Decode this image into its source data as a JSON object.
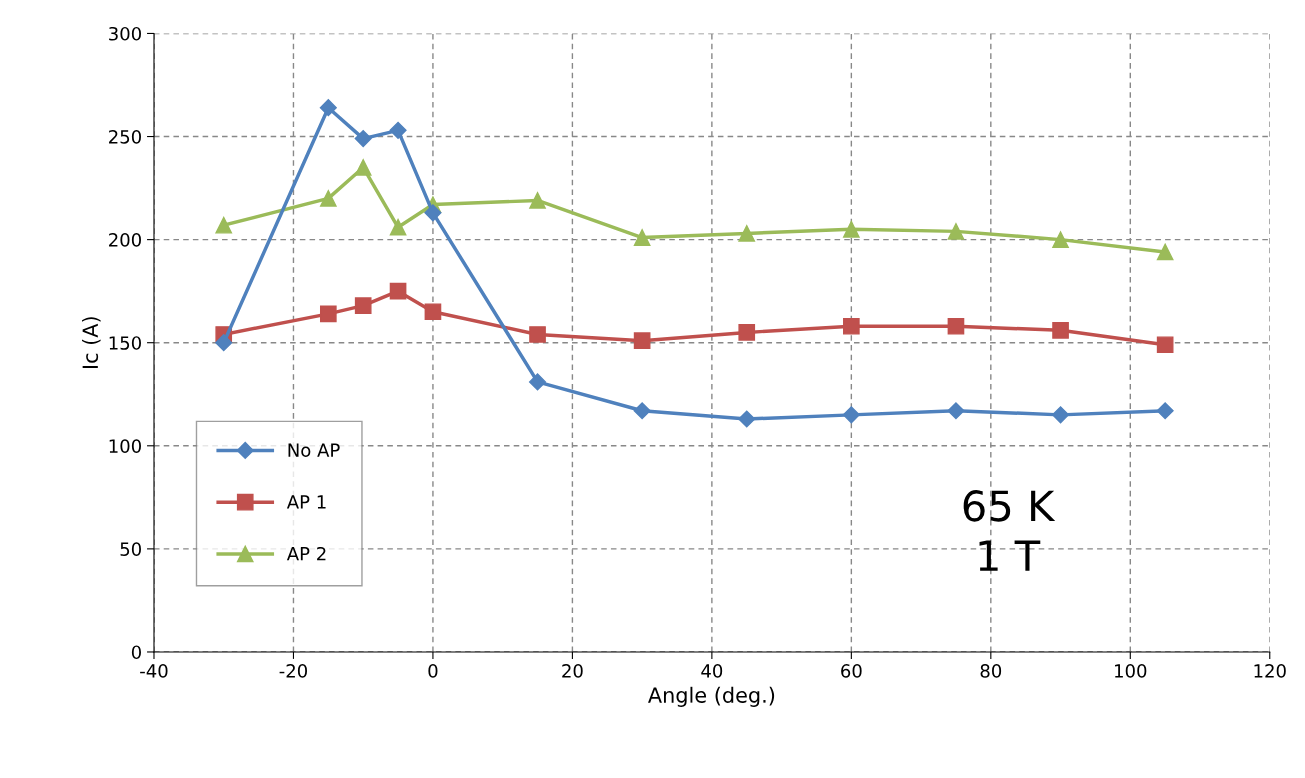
{
  "chart_data": {
    "type": "line",
    "xlabel": "Angle (deg.)",
    "ylabel": "Ic (A)",
    "xlim": [
      -40,
      120
    ],
    "xticks": [
      -40,
      -20,
      0,
      20,
      40,
      60,
      80,
      100,
      120
    ],
    "ylim": [
      0,
      300
    ],
    "yticks": [
      0,
      50,
      100,
      150,
      200,
      250,
      300
    ],
    "grid": true,
    "legend": "left",
    "annotations": [
      "65 K\n1 T"
    ],
    "x": [
      -30,
      -15,
      -10,
      -5,
      0,
      15,
      30,
      45,
      60,
      75,
      90,
      105
    ],
    "series": [
      {
        "name": "No AP",
        "color": "#4f81bd",
        "marker": "diamond",
        "values": [
          150,
          264,
          249,
          253,
          213,
          131,
          117,
          113,
          115,
          117,
          115,
          117
        ]
      },
      {
        "name": "AP 1",
        "color": "#c0504d",
        "marker": "square",
        "values": [
          154,
          164,
          168,
          175,
          165,
          154,
          151,
          155,
          158,
          158,
          156,
          149
        ]
      },
      {
        "name": "AP 2",
        "color": "#9bbb59",
        "marker": "triangle",
        "values": [
          207,
          220,
          235,
          206,
          217,
          219,
          201,
          203,
          205,
          204,
          200,
          194
        ]
      }
    ]
  }
}
